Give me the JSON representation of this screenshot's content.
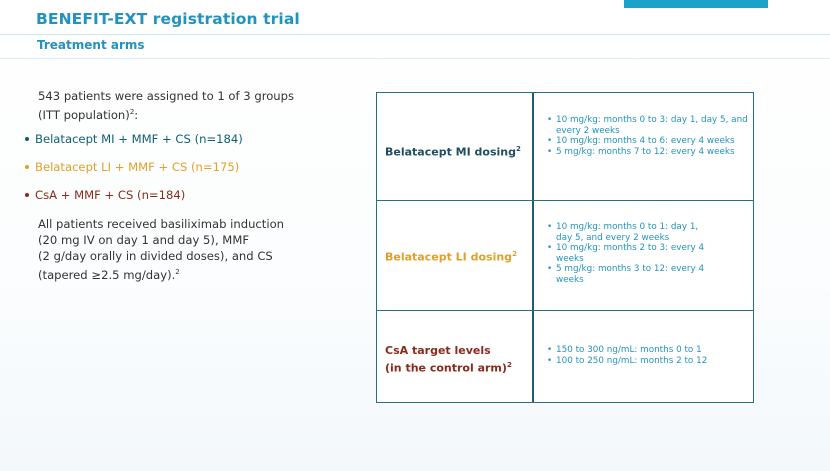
{
  "header": {
    "title": "BENEFIT-EXT registration trial",
    "subtitle": "Treatment arms"
  },
  "left": {
    "intro_line1": "543 patients were assigned to 1 of 3 groups",
    "intro_line2": "(ITT population)",
    "intro_sup": "2",
    "intro_end": ":",
    "arms": [
      {
        "label": "Belatacept MI + MMF + CS (n=184)",
        "color": "#0f5f72"
      },
      {
        "label": "Belatacept LI + MMF + CS (n=175)",
        "color": "#e0a02a"
      },
      {
        "label": "CsA + MMF + CS (n=184)",
        "color": "#8a2a1c"
      }
    ],
    "note_line1": "All patients received basiliximab induction",
    "note_line2": "(20 mg IV on day 1 and day 5), MMF",
    "note_line3": "(2 g/day orally in divided doses), and CS",
    "note_line4": "(tapered ≥2.5 mg/day).",
    "note_sup": "2"
  },
  "table": {
    "rows": [
      {
        "label_line1": "Belatacept MI dosing",
        "label_line2": "",
        "sup": "2",
        "items": [
          "10 mg/kg: months 0 to 3: day 1, day 5, and every 2 weeks",
          "10 mg/kg: months 4 to 6: every 4 weeks",
          "5 mg/kg: months 7 to 12: every 4 weeks"
        ]
      },
      {
        "label_line1": "Belatacept LI dosing",
        "label_line2": "",
        "sup": "2",
        "items": [
          "10 mg/kg: months 0 to 1: day 1, day 5, and every 2 weeks",
          "10 mg/kg: months 2 to 3: every 4 weeks",
          "5 mg/kg: months 3 to 12: every 4 weeks"
        ]
      },
      {
        "label_line1": "CsA target levels",
        "label_line2": "(in the control arm)",
        "sup": "2",
        "items": [
          "150 to 300 ng/mL: months 0 to 1",
          "100 to 250 ng/mL: months 2 to 12"
        ]
      }
    ]
  }
}
